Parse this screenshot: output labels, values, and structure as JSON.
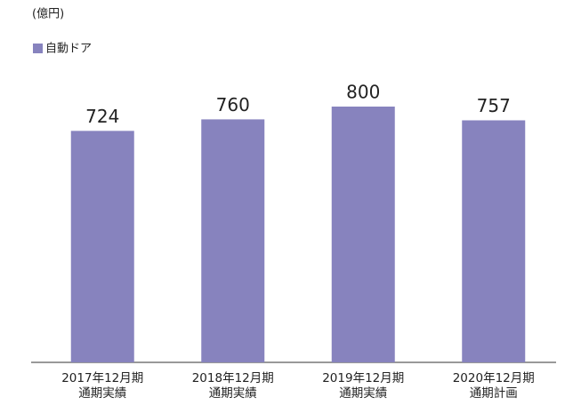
{
  "chart_data": {
    "type": "bar",
    "unit_label": "(億円)",
    "series": [
      {
        "name": "自動ドア",
        "color": "#8783be",
        "values": [
          724,
          760,
          800,
          757
        ]
      }
    ],
    "categories": [
      "2017年12月期\n通期実績",
      "2018年12月期\n通期実績",
      "2019年12月期\n通期実績",
      "2020年12月期\n通期計画"
    ],
    "ylim": [
      0,
      1000
    ],
    "legend": "top-left"
  }
}
